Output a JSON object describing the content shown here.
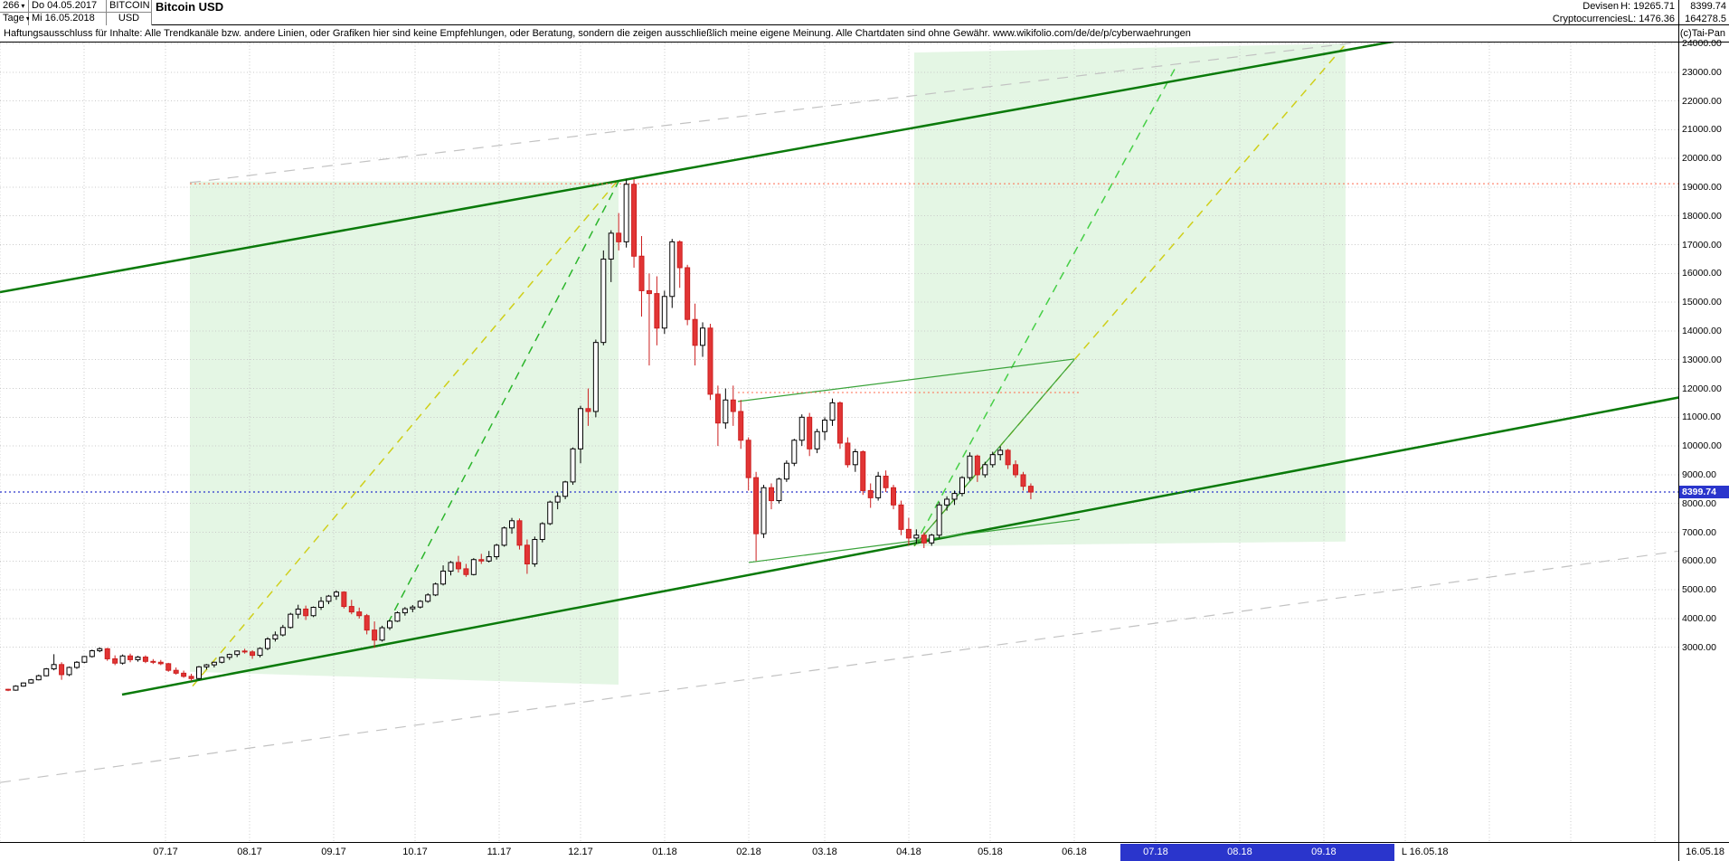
{
  "header": {
    "bars_count": "266",
    "period": "Tage",
    "date_from": "Do 04.05.2017",
    "date_to": "Mi 16.05.2018",
    "symbol": "BITCOIN",
    "symbol_currency": "USD",
    "title": "Bitcoin USD",
    "market": "Devisen",
    "category": "Cryptocurrencies",
    "high": "H: 19265.71",
    "low": "L: 1476.36",
    "last_price": "8399.74",
    "volume": "164278.5",
    "disclaimer": "Haftungsausschluss für Inhalte: Alle Trendkanäle bzw. andere Linien, oder Grafiken hier sind keine Empfehlungen, oder Beratung, sondern die zeigen ausschließlich meine eigene Meinung. Alle Chartdaten sind ohne Gewähr.  www.wikifolio.com/de/de/p/cyberwaehrungen",
    "copyright": "(c)Tai-Pan"
  },
  "axes": {
    "y_tick_labels": [
      "24000.00",
      "23000.00",
      "22000.00",
      "21000.00",
      "20000.00",
      "19000.00",
      "18000.00",
      "17000.00",
      "16000.00",
      "15000.00",
      "14000.00",
      "13000.00",
      "12000.00",
      "11000.00",
      "10000.00",
      "9000.00",
      "8000.00",
      "7000.00",
      "6000.00",
      "5000.00",
      "4000.00",
      "3000.00"
    ],
    "y_grid_min": 3000,
    "y_grid_max": 24000,
    "y_grid_step": 1000,
    "month_grid_days": [
      0,
      31,
      61,
      92,
      123,
      153,
      184,
      214,
      245,
      276,
      304,
      335,
      365,
      396,
      426,
      457,
      488,
      518,
      549,
      579,
      610
    ],
    "x_ticks": [
      {
        "label": "07.17",
        "day": 61
      },
      {
        "label": "08.17",
        "day": 92
      },
      {
        "label": "09.17",
        "day": 123
      },
      {
        "label": "10.17",
        "day": 153
      },
      {
        "label": "11.17",
        "day": 184
      },
      {
        "label": "12.17",
        "day": 214
      },
      {
        "label": "01.18",
        "day": 245
      },
      {
        "label": "02.18",
        "day": 276
      },
      {
        "label": "03.18",
        "day": 304
      },
      {
        "label": "04.18",
        "day": 335
      },
      {
        "label": "05.18",
        "day": 365
      },
      {
        "label": "06.18",
        "day": 396
      },
      {
        "label": "07.18",
        "day": 426,
        "highlight": true
      },
      {
        "label": "08.18",
        "day": 457,
        "highlight": true
      },
      {
        "label": "09.18",
        "day": 488,
        "highlight": true
      }
    ],
    "highlight_day_range": [
      413,
      514
    ],
    "highlight_color": "#2a35cc",
    "end_label": "L 16.05.18",
    "corner_label": "16.05.18",
    "last_price_label": {
      "text": "8399.74",
      "price": 8399.74,
      "bg": "#2a35cc",
      "fg": "#ffffff"
    }
  },
  "chart_data": {
    "type": "candlestick",
    "title": "Bitcoin USD",
    "symbol": "BITCOIN",
    "currency": "USD",
    "timeframe": "Tage",
    "period_from": "04.05.2017",
    "period_to": "16.05.2018",
    "high": 19265.71,
    "low": 1476.36,
    "last": 8399.74,
    "candle_format": "[open, high, low, close]",
    "first_day": 3,
    "last_day": 380,
    "day_zero_date": "2017-05-01",
    "xlim_days": [
      0,
      618.7
    ],
    "ylim": [
      -3770,
      24030
    ],
    "grid": true,
    "up_color": "#000000",
    "down_color": "#cc1f1f",
    "candles": [
      [
        1540,
        1560,
        1476,
        1510
      ],
      [
        1510,
        1680,
        1490,
        1650
      ],
      [
        1650,
        1780,
        1630,
        1760
      ],
      [
        1760,
        1900,
        1740,
        1870
      ],
      [
        1870,
        2050,
        1850,
        2010
      ],
      [
        2010,
        2280,
        1990,
        2250
      ],
      [
        2250,
        2760,
        2200,
        2400
      ],
      [
        2400,
        2480,
        1870,
        2050
      ],
      [
        2050,
        2330,
        2000,
        2300
      ],
      [
        2300,
        2520,
        2250,
        2480
      ],
      [
        2480,
        2700,
        2450,
        2680
      ],
      [
        2680,
        2920,
        2640,
        2880
      ],
      [
        2880,
        3000,
        2830,
        2950
      ],
      [
        2950,
        2980,
        2530,
        2600
      ],
      [
        2600,
        2720,
        2380,
        2450
      ],
      [
        2450,
        2750,
        2400,
        2700
      ],
      [
        2700,
        2780,
        2480,
        2570
      ],
      [
        2570,
        2700,
        2500,
        2660
      ],
      [
        2660,
        2720,
        2450,
        2510
      ],
      [
        2510,
        2590,
        2420,
        2480
      ],
      [
        2480,
        2560,
        2380,
        2430
      ],
      [
        2430,
        2460,
        2150,
        2200
      ],
      [
        2200,
        2300,
        2050,
        2100
      ],
      [
        2100,
        2190,
        1940,
        1990
      ],
      [
        1990,
        2080,
        1830,
        1914
      ],
      [
        1914,
        2350,
        1880,
        2320
      ],
      [
        2320,
        2420,
        2230,
        2390
      ],
      [
        2390,
        2500,
        2300,
        2480
      ],
      [
        2480,
        2680,
        2440,
        2650
      ],
      [
        2650,
        2780,
        2560,
        2750
      ],
      [
        2750,
        2890,
        2660,
        2870
      ],
      [
        2870,
        2950,
        2780,
        2840
      ],
      [
        2840,
        2900,
        2600,
        2720
      ],
      [
        2720,
        3000,
        2650,
        2960
      ],
      [
        2960,
        3350,
        2900,
        3290
      ],
      [
        3290,
        3550,
        3200,
        3430
      ],
      [
        3430,
        3780,
        3380,
        3690
      ],
      [
        3690,
        4200,
        3650,
        4150
      ],
      [
        4150,
        4480,
        4000,
        4330
      ],
      [
        4330,
        4450,
        3950,
        4100
      ],
      [
        4100,
        4420,
        4050,
        4390
      ],
      [
        4390,
        4750,
        4300,
        4600
      ],
      [
        4600,
        4820,
        4500,
        4780
      ],
      [
        4780,
        4980,
        4650,
        4920
      ],
      [
        4920,
        4950,
        4350,
        4420
      ],
      [
        4420,
        4650,
        4150,
        4230
      ],
      [
        4230,
        4380,
        4000,
        4100
      ],
      [
        4100,
        4160,
        3450,
        3600
      ],
      [
        3600,
        3900,
        2980,
        3250
      ],
      [
        3250,
        3750,
        3200,
        3680
      ],
      [
        3680,
        3950,
        3600,
        3910
      ],
      [
        3910,
        4250,
        3880,
        4200
      ],
      [
        4200,
        4400,
        4100,
        4340
      ],
      [
        4340,
        4470,
        4220,
        4400
      ],
      [
        4400,
        4640,
        4350,
        4600
      ],
      [
        4600,
        4880,
        4550,
        4820
      ],
      [
        4820,
        5250,
        4780,
        5200
      ],
      [
        5200,
        5850,
        5150,
        5650
      ],
      [
        5650,
        6000,
        5500,
        5950
      ],
      [
        5950,
        6180,
        5600,
        5730
      ],
      [
        5730,
        5900,
        5450,
        5530
      ],
      [
        5530,
        6100,
        5500,
        6050
      ],
      [
        6050,
        6250,
        5900,
        6000
      ],
      [
        6000,
        6350,
        5950,
        6150
      ],
      [
        6150,
        6600,
        6050,
        6550
      ],
      [
        6550,
        7200,
        6500,
        7150
      ],
      [
        7150,
        7500,
        6950,
        7400
      ],
      [
        7400,
        7480,
        6400,
        6550
      ],
      [
        6550,
        6750,
        5555,
        5900
      ],
      [
        5900,
        6850,
        5800,
        6750
      ],
      [
        6750,
        7350,
        6650,
        7300
      ],
      [
        7300,
        8100,
        7250,
        8050
      ],
      [
        8050,
        8380,
        7800,
        8250
      ],
      [
        8250,
        8790,
        8150,
        8750
      ],
      [
        8750,
        9950,
        8650,
        9900
      ],
      [
        9900,
        11400,
        9400,
        11300
      ],
      [
        11300,
        12000,
        10700,
        11200
      ],
      [
        11200,
        13700,
        11000,
        13600
      ],
      [
        13600,
        16800,
        13500,
        16500
      ],
      [
        16500,
        17500,
        15700,
        17400
      ],
      [
        17400,
        18100,
        16800,
        17100
      ],
      [
        17100,
        19265,
        16900,
        19100
      ],
      [
        19100,
        19280,
        16200,
        16600
      ],
      [
        16600,
        17300,
        14500,
        15400
      ],
      [
        15400,
        16000,
        12800,
        15300
      ],
      [
        15300,
        15900,
        13500,
        14100
      ],
      [
        14100,
        15400,
        13900,
        15200
      ],
      [
        15200,
        17200,
        14800,
        17100
      ],
      [
        17100,
        17150,
        15500,
        16200
      ],
      [
        16200,
        16300,
        14200,
        14400
      ],
      [
        14400,
        14950,
        12800,
        13500
      ],
      [
        13500,
        14300,
        13100,
        14100
      ],
      [
        14100,
        14250,
        11600,
        11800
      ],
      [
        11800,
        12100,
        10000,
        10800
      ],
      [
        10800,
        12000,
        10600,
        11600
      ],
      [
        11600,
        12100,
        10700,
        11200
      ],
      [
        11200,
        11600,
        9900,
        10200
      ],
      [
        10200,
        10300,
        8450,
        8900
      ],
      [
        8900,
        9100,
        6000,
        6950
      ],
      [
        6950,
        8650,
        6800,
        8550
      ],
      [
        8550,
        8700,
        7800,
        8100
      ],
      [
        8100,
        8900,
        8000,
        8850
      ],
      [
        8850,
        9500,
        8750,
        9400
      ],
      [
        9400,
        10250,
        9300,
        10200
      ],
      [
        10200,
        11100,
        10000,
        11000
      ],
      [
        11000,
        11150,
        9650,
        9900
      ],
      [
        9900,
        10600,
        9750,
        10500
      ],
      [
        10500,
        11000,
        10200,
        10900
      ],
      [
        10900,
        11650,
        10700,
        11500
      ],
      [
        11500,
        11550,
        9900,
        10100
      ],
      [
        10100,
        10300,
        9250,
        9350
      ],
      [
        9350,
        9900,
        9100,
        9800
      ],
      [
        9800,
        9850,
        8300,
        8450
      ],
      [
        8450,
        8700,
        7850,
        8200
      ],
      [
        8200,
        9100,
        8100,
        8950
      ],
      [
        8950,
        9150,
        8400,
        8550
      ],
      [
        8550,
        8650,
        7800,
        7950
      ],
      [
        7950,
        8100,
        6900,
        7100
      ],
      [
        7100,
        7500,
        6550,
        6800
      ],
      [
        6800,
        7100,
        6600,
        6900
      ],
      [
        6900,
        7000,
        6450,
        6630
      ],
      [
        6630,
        6950,
        6530,
        6900
      ],
      [
        6900,
        8050,
        6800,
        7950
      ],
      [
        7950,
        8250,
        7750,
        8150
      ],
      [
        8150,
        8450,
        7950,
        8350
      ],
      [
        8350,
        8950,
        8250,
        8900
      ],
      [
        8900,
        9780,
        8800,
        9650
      ],
      [
        9650,
        9700,
        8750,
        9000
      ],
      [
        9000,
        9450,
        8900,
        9350
      ],
      [
        9350,
        9800,
        9250,
        9700
      ],
      [
        9700,
        9990,
        9500,
        9850
      ],
      [
        9850,
        9900,
        9200,
        9350
      ],
      [
        9350,
        9500,
        8900,
        9000
      ],
      [
        9000,
        9100,
        8450,
        8600
      ],
      [
        8600,
        8700,
        8150,
        8399.74
      ]
    ],
    "annotations": {
      "regions": [
        {
          "name": "channel-area-2017",
          "points": [
            [
              70,
              19200
            ],
            [
              228,
              19200
            ],
            [
              228,
              1700
            ],
            [
              70,
              2150
            ]
          ],
          "fill": "#c9eec9",
          "opacity": 0.5
        },
        {
          "name": "channel-area-2018",
          "points": [
            [
              337,
              23680
            ],
            [
              496,
              23990
            ],
            [
              496,
              6680
            ],
            [
              337,
              6520
            ]
          ],
          "fill": "#c9eec9",
          "opacity": 0.5
        }
      ],
      "lines": [
        {
          "name": "gray-dashed-upper",
          "d1": 70,
          "p1": 19160,
          "d2": 500,
          "p2": 24030,
          "color": "#c2c2c2",
          "width": 1.2,
          "dash": "12 9"
        },
        {
          "name": "gray-dashed-lower",
          "d1": 0,
          "p1": -1700,
          "d2": 619,
          "p2": 6350,
          "color": "#c2c2c2",
          "width": 1.2,
          "dash": "12 9"
        },
        {
          "name": "yellow-dashed-rally-2017",
          "d1": 71,
          "p1": 1650,
          "d2": 228,
          "p2": 19265,
          "color": "#cfcf1a",
          "width": 1.5,
          "dash": "9 7"
        },
        {
          "name": "green-dashed-rally-2017",
          "d1": 143,
          "p1": 3840,
          "d2": 228,
          "p2": 19190,
          "color": "#2bb52b",
          "width": 1.5,
          "dash": "9 7"
        },
        {
          "name": "green-dashed-projection-2018",
          "d1": 337,
          "p1": 6520,
          "d2": 433,
          "p2": 23100,
          "color": "#46cf46",
          "width": 1.5,
          "dash": "9 7"
        },
        {
          "name": "yellow-dashed-projection-2018",
          "d1": 337,
          "p1": 6520,
          "d2": 496,
          "p2": 23970,
          "color": "#cfcf1a",
          "width": 1.5,
          "dash": "9 7"
        },
        {
          "name": "upper-channel-line",
          "d1": 0,
          "p1": 15350,
          "d2": 619,
          "p2": 25850,
          "color": "#0a7a0a",
          "width": 2.5
        },
        {
          "name": "lower-channel-line",
          "d1": 45,
          "p1": 1355,
          "d2": 619,
          "p2": 11690,
          "color": "#0a7a0a",
          "width": 2.5
        },
        {
          "name": "support-line-feb-apr",
          "d1": 276,
          "p1": 5950,
          "d2": 398,
          "p2": 7450,
          "color": "#3aa33a",
          "width": 1.2
        },
        {
          "name": "rising-line-apr",
          "d1": 337,
          "p1": 6520,
          "d2": 396,
          "p2": 13000,
          "color": "#3aa33a",
          "width": 1.2
        },
        {
          "name": "resistance-line-feb-jun",
          "d1": 272,
          "p1": 11550,
          "d2": 396,
          "p2": 13025,
          "color": "#3aa33a",
          "width": 1.2
        },
        {
          "name": "resistance-dotted-ath",
          "d1": 70,
          "p1": 19120,
          "d2": 619,
          "p2": 19120,
          "color": "#ff6a4d",
          "width": 1,
          "dash": "2 3"
        },
        {
          "name": "resistance-dotted-12k",
          "d1": 272,
          "p1": 11860,
          "d2": 398,
          "p2": 11860,
          "color": "#ff6a4d",
          "width": 1,
          "dash": "2 3"
        },
        {
          "name": "last-price-dotted",
          "d1": 0,
          "p1": 8399.74,
          "d2": 619,
          "p2": 8399.74,
          "color": "#2a35cc",
          "width": 1.2,
          "dash": "2 3"
        }
      ]
    }
  }
}
